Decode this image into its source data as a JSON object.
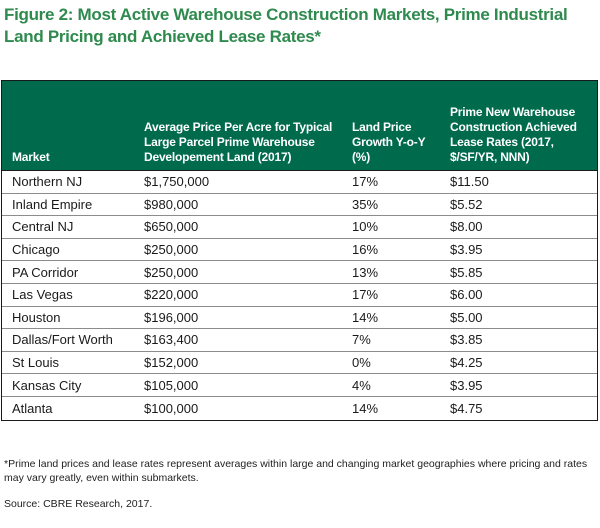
{
  "title": "Figure 2: Most Active Warehouse Construction Markets, Prime Industrial Land Pricing and Achieved Lease Rates*",
  "columns": [
    "Market",
    "Average Price Per Acre for Typical Large Parcel Prime Warehouse Developement Land (2017)",
    "Land Price Growth Y-o-Y (%)",
    "Prime New Warehouse Construction Achieved Lease Rates (2017, $/SF/YR, NNN)"
  ],
  "colors": {
    "header_bg": "#006a4d",
    "title": "#2f8a4e"
  },
  "chart_data": {
    "type": "table",
    "title": "Figure 2: Most Active Warehouse Construction Markets, Prime Industrial Land Pricing and Achieved Lease Rates*",
    "columns": [
      "Market",
      "Average Price Per Acre for Typical Large Parcel Prime Warehouse Developement Land (2017)",
      "Land Price Growth Y-o-Y (%)",
      "Prime New Warehouse Construction Achieved Lease Rates (2017, $/SF/YR, NNN)"
    ],
    "rows": [
      [
        "Northern NJ",
        "$1,750,000",
        "17%",
        "$11.50"
      ],
      [
        "Inland Empire",
        "$980,000",
        "35%",
        "$5.52"
      ],
      [
        "Central NJ",
        "$650,000",
        "10%",
        "$8.00"
      ],
      [
        "Chicago",
        "$250,000",
        "16%",
        "$3.95"
      ],
      [
        "PA Corridor",
        "$250,000",
        "13%",
        "$5.85"
      ],
      [
        "Las Vegas",
        "$220,000",
        "17%",
        "$6.00"
      ],
      [
        "Houston",
        "$196,000",
        "14%",
        "$5.00"
      ],
      [
        "Dallas/Fort Worth",
        "$163,400",
        "7%",
        "$3.85"
      ],
      [
        "St Louis",
        "$152,000",
        "0%",
        "$4.25"
      ],
      [
        "Kansas City",
        "$105,000",
        "4%",
        "$3.95"
      ],
      [
        "Atlanta",
        "$100,000",
        "14%",
        "$4.75"
      ]
    ]
  },
  "footnote": "*Prime land prices and lease rates represent averages within large and changing market geographies where pricing and rates may vary greatly, even within submarkets.",
  "source": "Source: CBRE Research, 2017."
}
